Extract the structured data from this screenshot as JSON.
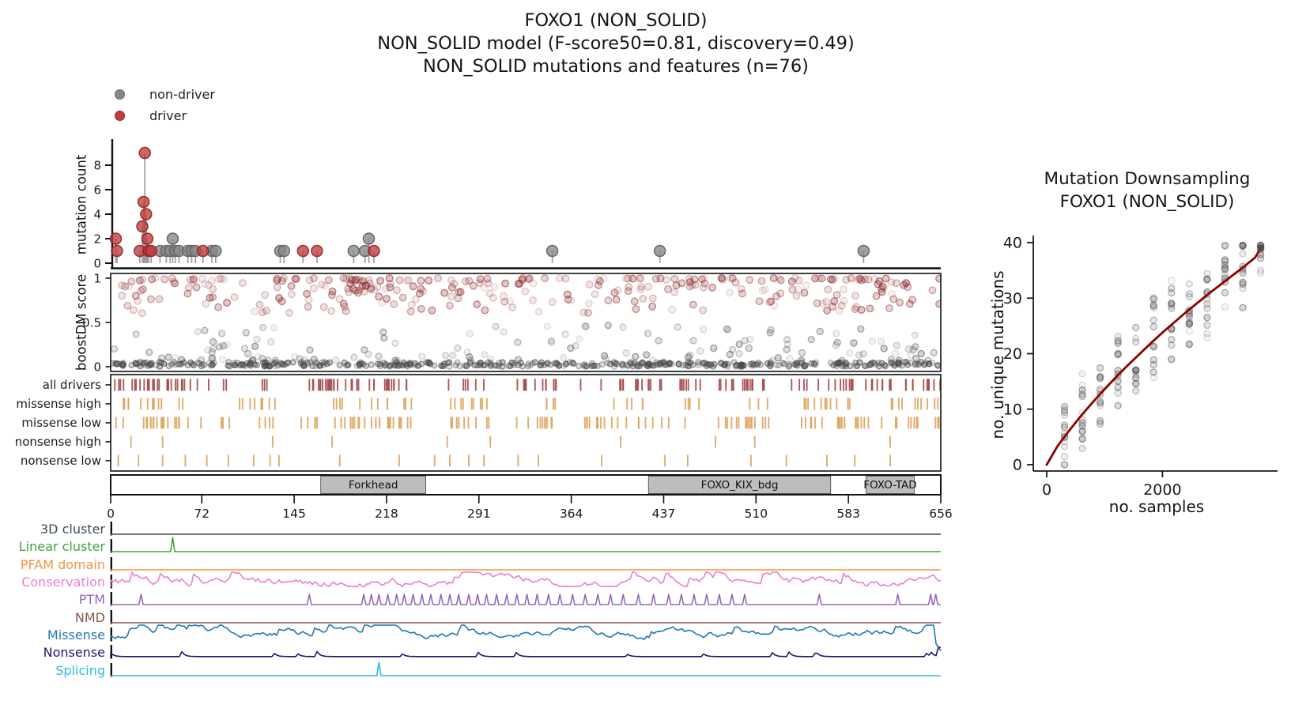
{
  "title": {
    "line1": "FOXO1 (NON_SOLID)",
    "line2": "NON_SOLID model (F-score50=0.81, discovery=0.49)",
    "line3": "NON_SOLID mutations and features (n=76)"
  },
  "legend": {
    "items": [
      {
        "label": "non-driver",
        "color": "#878787"
      },
      {
        "label": "driver",
        "color": "#c23a3a"
      }
    ]
  },
  "chart_data": [
    {
      "id": "needle-plot",
      "type": "lollipop",
      "ylabel": "mutation count",
      "xlim": [
        0,
        656
      ],
      "ylim": [
        0,
        9
      ],
      "yticks": [
        0,
        2,
        4,
        6,
        8
      ],
      "series": [
        {
          "name": "non-driver",
          "fill": "#878787",
          "edge": "#5f5f5f",
          "points": [
            [
              39,
              1
            ],
            [
              44,
              1
            ],
            [
              47,
              1
            ],
            [
              49,
              2
            ],
            [
              51,
              1
            ],
            [
              54,
              1
            ],
            [
              61,
              1
            ],
            [
              64,
              1
            ],
            [
              67,
              1
            ],
            [
              80,
              1
            ],
            [
              83,
              1
            ],
            [
              134,
              1
            ],
            [
              137,
              1
            ],
            [
              192,
              1
            ],
            [
              201,
              1
            ],
            [
              204,
              2
            ],
            [
              349,
              1
            ],
            [
              434,
              1
            ],
            [
              595,
              1
            ]
          ]
        },
        {
          "name": "driver",
          "fill": "#c23a3a",
          "edge": "#8c2222",
          "points": [
            [
              4,
              2
            ],
            [
              5,
              1
            ],
            [
              23,
              1
            ],
            [
              25,
              3
            ],
            [
              26,
              5
            ],
            [
              27,
              9
            ],
            [
              28,
              4
            ],
            [
              29,
              2
            ],
            [
              30,
              1
            ],
            [
              32,
              1
            ],
            [
              73,
              1
            ],
            [
              152,
              1
            ],
            [
              163,
              1
            ],
            [
              208,
              1
            ]
          ]
        }
      ]
    },
    {
      "id": "boostdm-scatter",
      "type": "scatter",
      "ylabel": "boostDM score",
      "ylim": [
        0,
        1
      ],
      "yticks": [
        0,
        0.5,
        1
      ],
      "clouds": [
        {
          "name": "driver-high-scores",
          "color": "#8b2525",
          "n": 310,
          "seed": 101,
          "y_base": 0.58,
          "y_spread": 0.42,
          "skew": "top"
        },
        {
          "name": "non-driver-mid-scores",
          "color": "#565656",
          "n": 140,
          "seed": 202,
          "y_base": 0.07,
          "y_spread": 0.4,
          "skew": "bottom"
        },
        {
          "name": "non-driver-floor-band",
          "color": "#4a4a4a",
          "n": 430,
          "seed": 303,
          "y_base": 0.002,
          "y_spread": 0.05,
          "skew": "uniform"
        }
      ]
    },
    {
      "id": "consequence-tracks",
      "type": "ticks",
      "rows": [
        {
          "label": "all drivers",
          "color": "#a34d4d",
          "mode": "random",
          "n": 165,
          "seed": 11,
          "gaps": [
            [
              95,
              117
            ],
            [
              130,
              148
            ],
            [
              238,
              262
            ],
            [
              300,
              315
            ],
            [
              352,
              370
            ],
            [
              466,
              478
            ],
            [
              520,
              538
            ]
          ]
        },
        {
          "label": "missense high",
          "color": "#dda55e",
          "mode": "random",
          "n": 80,
          "seed": 23,
          "gaps": [
            [
              60,
              95
            ],
            [
              130,
              175
            ],
            [
              238,
              268
            ],
            [
              300,
              340
            ],
            [
              360,
              395
            ],
            [
              430,
              450
            ],
            [
              465,
              505
            ],
            [
              520,
              545
            ],
            [
              600,
              615
            ]
          ]
        },
        {
          "label": "missense low",
          "color": "#dda55e",
          "mode": "random",
          "n": 140,
          "seed": 37,
          "gaps": [
            [
              95,
              117
            ],
            [
              130,
              150
            ],
            [
              238,
              265
            ],
            [
              300,
              318
            ],
            [
              352,
              372
            ],
            [
              466,
              480
            ],
            [
              520,
              540
            ]
          ]
        },
        {
          "label": "nonsense high",
          "color": "#dda55e",
          "mode": "list",
          "positions": [
            16,
            41,
            128,
            175,
            266,
            300,
            403,
            478,
            509,
            616
          ]
        },
        {
          "label": "nonsense low",
          "color": "#dda55e",
          "mode": "list",
          "positions": [
            6,
            22,
            41,
            59,
            76,
            93,
            113,
            126,
            133,
            181,
            228,
            256,
            268,
            283,
            295,
            322,
            338,
            388,
            438,
            456,
            506,
            534,
            566,
            588,
            616
          ]
        }
      ]
    },
    {
      "id": "domain-bar",
      "type": "domains",
      "boxes": [
        {
          "label": "Forkhead",
          "start": 166,
          "end": 249
        },
        {
          "label": "FOXO_KIX_bdg",
          "start": 425,
          "end": 569
        },
        {
          "label": "FOXO-TAD",
          "start": 597,
          "end": 635
        }
      ],
      "box_fill": "#bdbdbd",
      "xticks": [
        0,
        72,
        145,
        218,
        291,
        364,
        437,
        510,
        583,
        656
      ]
    },
    {
      "id": "feature-tracks",
      "type": "line-tracks",
      "rows": [
        {
          "label": "3D cluster",
          "color": "#33504f",
          "shape": "flat"
        },
        {
          "label": "Linear cluster",
          "color": "#3fa33f",
          "shape": "spikes",
          "spikes": [
            [
              49,
              18
            ]
          ]
        },
        {
          "label": "PFAM domain",
          "color": "#f5923e",
          "shape": "flat"
        },
        {
          "label": "Conservation",
          "color": "#e87fd0",
          "shape": "noise",
          "amp": 3.2,
          "offset": 5.5,
          "seed": 401
        },
        {
          "label": "PTM",
          "color": "#9467bd",
          "shape": "spikes",
          "spikes": [
            [
              24,
              13
            ],
            [
              157,
              13
            ],
            [
              200,
              13
            ],
            [
              206,
              13
            ],
            [
              212,
              13
            ],
            [
              219,
              13
            ],
            [
              226,
              13
            ],
            [
              232,
              13
            ],
            [
              239,
              13
            ],
            [
              246,
              13
            ],
            [
              253,
              13
            ],
            [
              261,
              13
            ],
            [
              268,
              13
            ],
            [
              275,
              13
            ],
            [
              283,
              13
            ],
            [
              290,
              13
            ],
            [
              297,
              13
            ],
            [
              305,
              13
            ],
            [
              313,
              13
            ],
            [
              321,
              13
            ],
            [
              329,
              13
            ],
            [
              337,
              13
            ],
            [
              346,
              13
            ],
            [
              355,
              13
            ],
            [
              365,
              13
            ],
            [
              375,
              13
            ],
            [
              385,
              13
            ],
            [
              395,
              13
            ],
            [
              405,
              13
            ],
            [
              417,
              13
            ],
            [
              429,
              13
            ],
            [
              441,
              13
            ],
            [
              451,
              13
            ],
            [
              461,
              13
            ],
            [
              471,
              13
            ],
            [
              481,
              13
            ],
            [
              491,
              13
            ],
            [
              501,
              13
            ],
            [
              560,
              13
            ],
            [
              622,
              13
            ],
            [
              648,
              13
            ],
            [
              652,
              13
            ]
          ]
        },
        {
          "label": "NMD",
          "color": "#8c564b",
          "shape": "flat"
        },
        {
          "label": "Missense",
          "color": "#1f77b4",
          "shape": "noise",
          "amp": 2.6,
          "offset": 8,
          "seed": 402,
          "end": "drop"
        },
        {
          "label": "Nonsense",
          "color": "#19196e",
          "shape": "bumps",
          "seed": 403,
          "end": "spike"
        },
        {
          "label": "Splicing",
          "color": "#29bede",
          "shape": "spikes",
          "spikes": [
            [
              212,
              17
            ]
          ]
        }
      ]
    },
    {
      "id": "downsampling",
      "type": "scatter-line",
      "title_line1": "Mutation Downsampling",
      "title_line2": "FOXO1 (NON_SOLID)",
      "xlabel": "no. samples",
      "ylabel": "no. unique mutations",
      "xlim": [
        0,
        3960
      ],
      "ylim": [
        0,
        40
      ],
      "xticks": [
        0,
        2000
      ],
      "yticks": [
        0,
        10,
        20,
        30,
        40
      ],
      "curve": {
        "color": "#8b0000",
        "points": [
          [
            0,
            0
          ],
          [
            185,
            3.3
          ],
          [
            400,
            6.3
          ],
          [
            600,
            8.9
          ],
          [
            800,
            11.3
          ],
          [
            1000,
            13.6
          ],
          [
            1200,
            15.8
          ],
          [
            1400,
            17.9
          ],
          [
            1600,
            19.9
          ],
          [
            1800,
            21.9
          ],
          [
            2000,
            23.8
          ],
          [
            2200,
            25.6
          ],
          [
            2400,
            27.4
          ],
          [
            2600,
            29.1
          ],
          [
            2800,
            30.8
          ],
          [
            3000,
            32.4
          ],
          [
            3200,
            34.0
          ],
          [
            3400,
            35.6
          ],
          [
            3600,
            37.3
          ],
          [
            3700,
            39.0
          ]
        ]
      },
      "scatter": {
        "color": "#5a5a5a",
        "n_columns": 12,
        "column_step": 308,
        "points_per_column": 14,
        "jitter": 4.6,
        "seed": 505
      },
      "endpoint": {
        "x": 3700,
        "y": 39,
        "color": "#4d4d4d"
      }
    }
  ]
}
